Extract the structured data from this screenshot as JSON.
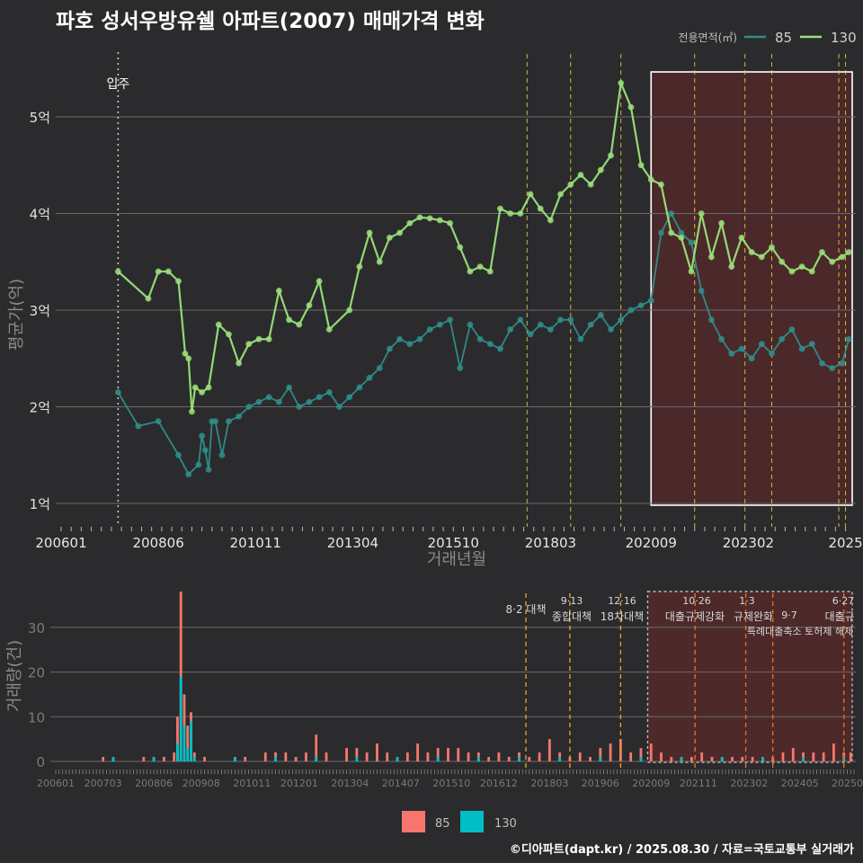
{
  "title": "파호 성서우방유쉘 아파트(2007) 매매가격 변화",
  "footer": "©디아파트(dapt.kr) / 2025.08.30 / 자료=국토교통부 실거래가",
  "colors": {
    "bg": "#2b2b2d",
    "s85": "#2f8f8c",
    "s130": "#9be07a",
    "bar85": "#f8766d",
    "bar130": "#00bfc4",
    "shade": "#5a2a2a",
    "policy": "#e6d23a"
  },
  "chart_data": [
    {
      "type": "line",
      "title": "",
      "xlabel": "거래년월",
      "ylabel": "평균가(억)",
      "x_ticks": [
        "200601",
        "200806",
        "201011",
        "201304",
        "201510",
        "201803",
        "202009",
        "202302",
        "2025"
      ],
      "y_ticks": [
        "1억",
        "2억",
        "3억",
        "4억",
        "5억"
      ],
      "ylim": [
        0.75,
        5.7
      ],
      "legend": {
        "title": "전용면적(㎡)",
        "placement": "top-right"
      },
      "annotation": "입주",
      "series": [
        {
          "name": "85",
          "x": [
            "2007-06",
            "2007-12",
            "2008-06",
            "2008-12",
            "2009-03",
            "2009-06",
            "2009-07",
            "2009-08",
            "2009-09",
            "2009-10",
            "2009-11",
            "2010-01",
            "2010-03",
            "2010-06",
            "2010-09",
            "2010-12",
            "2011-03",
            "2011-06",
            "2011-09",
            "2011-12",
            "2012-03",
            "2012-06",
            "2012-09",
            "2012-12",
            "2013-03",
            "2013-06",
            "2013-09",
            "2013-12",
            "2014-03",
            "2014-06",
            "2014-09",
            "2014-12",
            "2015-03",
            "2015-06",
            "2015-09",
            "2015-12",
            "2016-03",
            "2016-06",
            "2016-09",
            "2016-12",
            "2017-03",
            "2017-06",
            "2017-09",
            "2017-12",
            "2018-03",
            "2018-06",
            "2018-09",
            "2018-12",
            "2019-03",
            "2019-06",
            "2019-09",
            "2019-12",
            "2020-03",
            "2020-06",
            "2020-09",
            "2020-12",
            "2021-03",
            "2021-06",
            "2021-09",
            "2021-12",
            "2022-03",
            "2022-06",
            "2022-09",
            "2022-12",
            "2023-03",
            "2023-06",
            "2023-09",
            "2023-12",
            "2024-03",
            "2024-06",
            "2024-09",
            "2024-12",
            "2025-03",
            "2025-06",
            "2025-08"
          ],
          "y": [
            2.15,
            1.8,
            1.85,
            1.5,
            1.3,
            1.4,
            1.7,
            1.55,
            1.35,
            1.85,
            1.85,
            1.5,
            1.85,
            1.9,
            2.0,
            2.05,
            2.1,
            2.05,
            2.2,
            2.0,
            2.05,
            2.1,
            2.15,
            2.0,
            2.1,
            2.2,
            2.3,
            2.4,
            2.6,
            2.7,
            2.65,
            2.7,
            2.8,
            2.85,
            2.9,
            2.4,
            2.85,
            2.7,
            2.65,
            2.6,
            2.8,
            2.9,
            2.75,
            2.85,
            2.8,
            2.9,
            2.9,
            2.7,
            2.85,
            2.95,
            2.8,
            2.9,
            3.0,
            3.05,
            3.1,
            3.8,
            4.0,
            3.8,
            3.7,
            3.2,
            2.9,
            2.7,
            2.55,
            2.6,
            2.5,
            2.65,
            2.55,
            2.7,
            2.8,
            2.6,
            2.65,
            2.45,
            2.4,
            2.45,
            2.7
          ]
        },
        {
          "name": "130",
          "x": [
            "2007-06",
            "2008-03",
            "2008-06",
            "2008-09",
            "2008-12",
            "2009-02",
            "2009-03",
            "2009-04",
            "2009-05",
            "2009-07",
            "2009-09",
            "2009-12",
            "2010-03",
            "2010-06",
            "2010-09",
            "2010-12",
            "2011-03",
            "2011-06",
            "2011-09",
            "2011-12",
            "2012-03",
            "2012-06",
            "2012-09",
            "2013-03",
            "2013-06",
            "2013-09",
            "2013-12",
            "2014-03",
            "2014-06",
            "2014-09",
            "2014-12",
            "2015-03",
            "2015-06",
            "2015-09",
            "2015-12",
            "2016-03",
            "2016-06",
            "2016-09",
            "2016-12",
            "2017-03",
            "2017-06",
            "2017-09",
            "2017-12",
            "2018-03",
            "2018-06",
            "2018-09",
            "2018-12",
            "2019-03",
            "2019-06",
            "2019-09",
            "2019-12",
            "2020-03",
            "2020-06",
            "2020-09",
            "2020-12",
            "2021-03",
            "2021-06",
            "2021-09",
            "2021-12",
            "2022-03",
            "2022-06",
            "2022-09",
            "2022-12",
            "2023-03",
            "2023-06",
            "2023-09",
            "2023-12",
            "2024-03",
            "2024-06",
            "2024-09",
            "2024-12",
            "2025-03",
            "2025-06",
            "2025-08"
          ],
          "y": [
            3.4,
            3.12,
            3.4,
            3.4,
            3.3,
            2.55,
            2.5,
            1.95,
            2.2,
            2.15,
            2.2,
            2.85,
            2.75,
            2.45,
            2.65,
            2.7,
            2.7,
            3.2,
            2.9,
            2.85,
            3.05,
            3.3,
            2.8,
            3.0,
            3.45,
            3.8,
            3.5,
            3.75,
            3.8,
            3.9,
            3.96,
            3.95,
            3.93,
            3.9,
            3.65,
            3.4,
            3.45,
            3.4,
            4.05,
            4.0,
            4.0,
            4.2,
            4.05,
            3.93,
            4.2,
            4.3,
            4.4,
            4.3,
            4.45,
            4.6,
            5.35,
            5.1,
            4.5,
            4.35,
            4.3,
            3.8,
            3.75,
            3.4,
            4.0,
            3.55,
            3.9,
            3.45,
            3.75,
            3.6,
            3.55,
            3.65,
            3.5,
            3.4,
            3.45,
            3.4,
            3.6,
            3.5,
            3.55,
            3.6
          ]
        }
      ]
    },
    {
      "type": "bar",
      "title": "",
      "xlabel": "",
      "ylabel": "거래량(건)",
      "x_ticks": [
        "200601",
        "200703",
        "200806",
        "200908",
        "201011",
        "201201",
        "201304",
        "201407",
        "201510",
        "201612",
        "201803",
        "201906",
        "202009",
        "202111",
        "202302",
        "202405",
        "20250"
      ],
      "y_ticks": [
        "0",
        "10",
        "20",
        "30"
      ],
      "ylim": [
        0,
        38
      ],
      "legend": {
        "placement": "bottom",
        "entries": [
          "85",
          "130"
        ]
      },
      "policies": [
        {
          "date": "8·2 대책",
          "label": "8·2 대책"
        },
        {
          "date": "9·13",
          "label": "종합대책"
        },
        {
          "date": "12·16",
          "label": "18차대책"
        },
        {
          "date": "10·26",
          "label": "대출규제강화"
        },
        {
          "date": "1·3",
          "label": "규제완화"
        },
        {
          "date": "9·7",
          "label": "특례대출축소 토허제 해제"
        },
        {
          "date": "6·27",
          "label": "대출규"
        }
      ],
      "series": [
        {
          "name": "85",
          "x": [
            "2007-03",
            "2007-06",
            "2008-03",
            "2008-06",
            "2008-09",
            "2008-12",
            "2009-01",
            "2009-02",
            "2009-03",
            "2009-04",
            "2009-05",
            "2009-06",
            "2009-09",
            "2010-06",
            "2010-09",
            "2011-03",
            "2011-06",
            "2011-09",
            "2011-12",
            "2012-03",
            "2012-06",
            "2012-09",
            "2013-03",
            "2013-06",
            "2013-09",
            "2013-12",
            "2014-03",
            "2014-06",
            "2014-09",
            "2014-12",
            "2015-03",
            "2015-06",
            "2015-09",
            "2015-12",
            "2016-03",
            "2016-06",
            "2016-09",
            "2016-12",
            "2017-03",
            "2017-06",
            "2017-09",
            "2017-12",
            "2018-03",
            "2018-06",
            "2018-09",
            "2018-12",
            "2019-03",
            "2019-06",
            "2019-09",
            "2019-12",
            "2020-03",
            "2020-06",
            "2020-09",
            "2020-12",
            "2021-03",
            "2021-06",
            "2021-09",
            "2021-12",
            "2022-03",
            "2022-06",
            "2022-09",
            "2022-12",
            "2023-03",
            "2023-06",
            "2023-09",
            "2023-12",
            "2024-03",
            "2024-06",
            "2024-09",
            "2024-12",
            "2025-03",
            "2025-06",
            "2025-08"
          ],
          "y": [
            1,
            1,
            1,
            1,
            1,
            2,
            10,
            38,
            15,
            8,
            11,
            2,
            1,
            1,
            1,
            2,
            2,
            2,
            1,
            2,
            6,
            2,
            3,
            3,
            2,
            4,
            2,
            1,
            2,
            4,
            2,
            3,
            3,
            3,
            2,
            2,
            1,
            2,
            1,
            2,
            1,
            2,
            5,
            2,
            1,
            2,
            1,
            3,
            4,
            5,
            2,
            3,
            4,
            2,
            1,
            1,
            1,
            2,
            1,
            1,
            1,
            1,
            1,
            1,
            1,
            2,
            3,
            2,
            2,
            2,
            4,
            2,
            2
          ]
        },
        {
          "name": "130",
          "x": [
            "2007-06",
            "2008-06",
            "2009-01",
            "2009-02",
            "2009-03",
            "2009-04",
            "2009-05",
            "2009-06",
            "2010-06",
            "2011-06",
            "2012-06",
            "2013-06",
            "2014-06",
            "2015-06",
            "2016-06",
            "2017-06",
            "2018-06",
            "2019-06",
            "2020-06",
            "2021-06",
            "2022-06",
            "2023-06",
            "2024-06",
            "2025-06"
          ],
          "y": [
            1,
            1,
            4,
            19,
            8,
            3,
            9,
            1,
            1,
            1,
            1,
            1,
            1,
            1,
            1,
            1,
            1,
            1,
            1,
            1,
            1,
            1,
            1,
            1
          ]
        }
      ]
    }
  ]
}
